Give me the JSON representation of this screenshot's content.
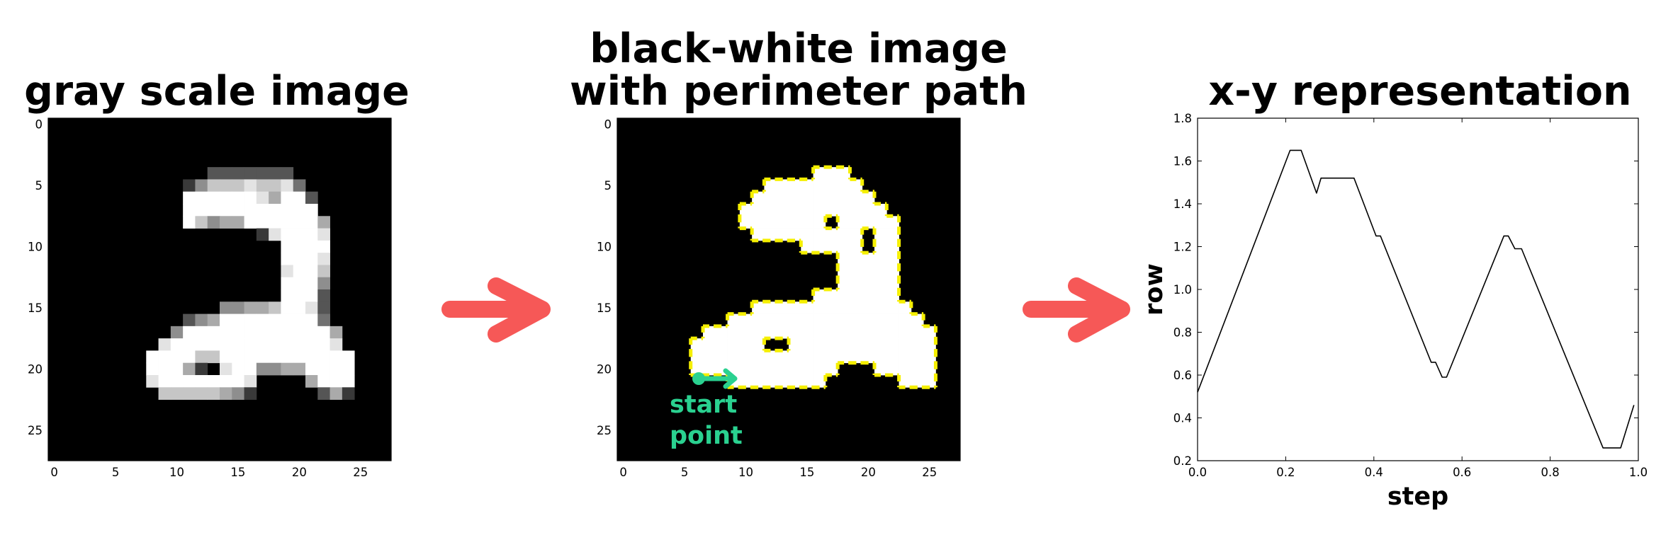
{
  "colors": {
    "arrow": "#f65857",
    "path": "#f5ef00",
    "start": "#2ad190"
  },
  "panels": {
    "gray": {
      "title": "gray scale image",
      "xticks": [
        "0",
        "5",
        "10",
        "15",
        "20",
        "25"
      ],
      "yticks": [
        "0",
        "5",
        "10",
        "15",
        "20",
        "25"
      ],
      "grid": [
        "0000000000000000000000000000",
        "0000000000000000000000000000",
        "0000000000000000000000000000",
        "0000000000000000000000000000",
        "00000000000003333333000000000",
        "00000000000257778778400000000",
        "00000000000999999869930000000",
        "00000000000999999999990000000",
        "00000000000975669999996000000",
        "00000000000000000289998000000",
        "00000000000000000009999000000",
        "00000000000000000009998000000",
        "00000000000000000008997000000",
        "00000000000000000009995000000",
        "00000000000000000009993000000",
        "00000000000000556679983000000",
        "00000000000356999999994000000",
        "00000000005999999999999600000",
        "00000000089999999999999800000",
        "00000000999977999999999990000",
        "00000000999620899556699990000",
        "00000000899999998000069990000",
        "00000000077777652000003620000",
        "00000000000000000000000000000",
        "00000000000000000000000000000",
        "00000000000000000000000000000",
        "00000000000000000000000000000",
        "00000000000000000000000000000"
      ]
    },
    "bw": {
      "title_line1": "black-white image",
      "title_line2": "with perimeter path",
      "xticks": [
        "0",
        "5",
        "10",
        "15",
        "20",
        "25"
      ],
      "yticks": [
        "0",
        "5",
        "10",
        "15",
        "20",
        "25"
      ],
      "grid": [
        "0000000000000000000000000000",
        "0000000000000000000000000000",
        "0000000000000000000000000000",
        "0000000000000000000000000000",
        "0000000000000000111000000000",
        "0000000000001111111100000000",
        "0000000000011111111110000000",
        "0000000000111111111111000000",
        "0000000000111111101111100000",
        "0000000000011111111101100000",
        "0000000000000001111101100000",
        "0000000000000000001111100000",
        "0000000000000000001111100000",
        "0000000000000000001111100000",
        "0000000000000000111111100000",
        "0000000000011111111111110000",
        "0000000001111111111111111000",
        "0000000111111111111111111100",
        "0000001111110011111111111100",
        "0000001111111111111111111100",
        "0000001111111111110001111100",
        "0000000001111111100000011100",
        "0000000000000000000000000000",
        "0000000000000000000000000000",
        "0000000000000000000000000000",
        "0000000000000000000000000000",
        "0000000000000000000000000000",
        "0000000000000000000000000000"
      ],
      "annotation_line1": "start",
      "annotation_line2": "point"
    },
    "xy": {
      "title": "x-y representation",
      "xlabel": "step",
      "ylabel": "row"
    }
  },
  "chart_data": {
    "type": "line",
    "title": "x-y representation",
    "xlabel": "step",
    "ylabel": "row",
    "xlim": [
      0.0,
      1.0
    ],
    "ylim": [
      0.2,
      1.8
    ],
    "xticks": [
      "0.0",
      "0.2",
      "0.4",
      "0.6",
      "0.8",
      "1.0"
    ],
    "yticks": [
      "0.2",
      "0.4",
      "0.6",
      "0.8",
      "1.0",
      "1.2",
      "1.4",
      "1.6",
      "1.8"
    ],
    "grid": false,
    "x": [
      0.0,
      0.21,
      0.235,
      0.27,
      0.28,
      0.355,
      0.405,
      0.415,
      0.53,
      0.54,
      0.555,
      0.565,
      0.695,
      0.705,
      0.72,
      0.735,
      0.92,
      0.96,
      0.99
    ],
    "y": [
      0.52,
      1.65,
      1.65,
      1.45,
      1.52,
      1.52,
      1.25,
      1.25,
      0.66,
      0.66,
      0.59,
      0.59,
      1.25,
      1.25,
      1.19,
      1.19,
      0.26,
      0.26,
      0.46
    ]
  }
}
